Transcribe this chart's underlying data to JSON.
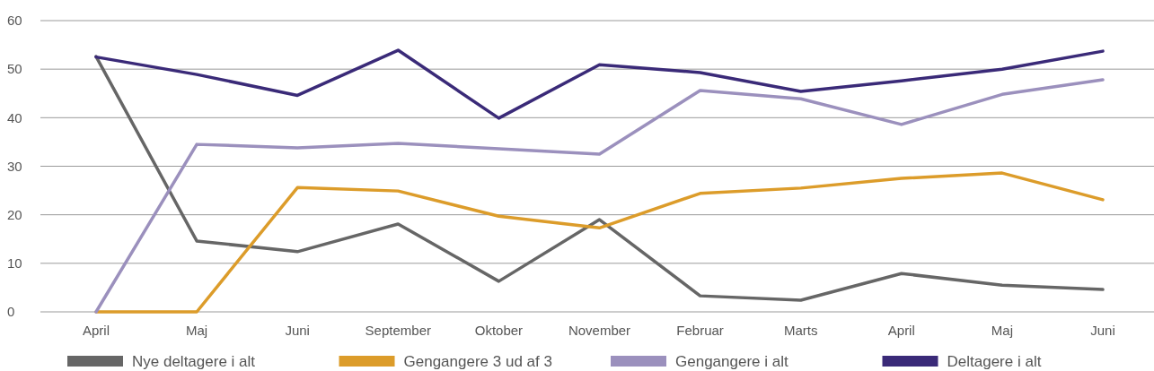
{
  "chart_data": {
    "type": "line",
    "categories": [
      "April",
      "Maj",
      "Juni",
      "September",
      "Oktober",
      "November",
      "Februar",
      "Marts",
      "April",
      "Maj",
      "Juni"
    ],
    "series": [
      {
        "name": "Nye deltagere i alt",
        "color": "#666666",
        "values": [
          52.6,
          14.6,
          12.4,
          18.1,
          6.3,
          19,
          3.3,
          2.4,
          7.9,
          5.5,
          4.6
        ]
      },
      {
        "name": "Gengangere 3 ud af 3",
        "color": "#dc9c2a",
        "values": [
          0,
          0,
          25.6,
          24.9,
          19.7,
          17.3,
          24.4,
          25.5,
          27.5,
          28.6,
          23.1
        ]
      },
      {
        "name": "Gengangere i alt",
        "color": "#9b90bd",
        "values": [
          0,
          34.5,
          33.8,
          34.7,
          33.6,
          32.5,
          45.6,
          43.9,
          38.6,
          44.8,
          47.8
        ]
      },
      {
        "name": "Deltagere i alt",
        "color": "#3a2a78",
        "values": [
          52.5,
          48.9,
          44.6,
          53.9,
          39.9,
          50.9,
          49.3,
          45.4,
          47.6,
          50,
          53.7
        ]
      }
    ],
    "ylim": [
      0,
      60
    ],
    "yticks": [
      0,
      10,
      20,
      30,
      40,
      50,
      60
    ],
    "grid": "y",
    "legend": "bottom",
    "marker": "none",
    "line_style": "solid"
  }
}
